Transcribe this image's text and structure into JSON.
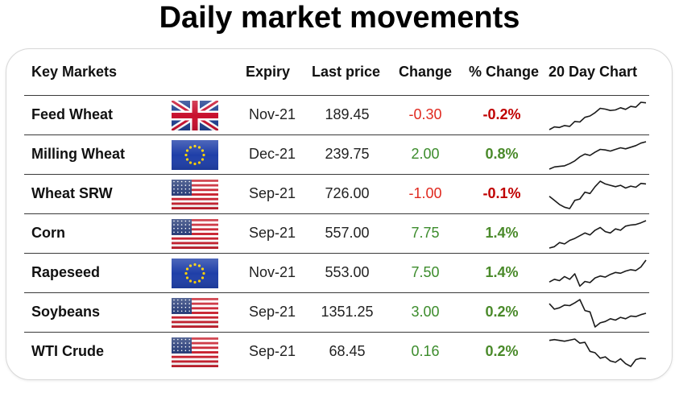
{
  "title": "Daily market movements",
  "headers": {
    "market": "Key Markets",
    "expiry": "Expiry",
    "last_price": "Last price",
    "change": "Change",
    "pct_change": "% Change",
    "chart": "20 Day Chart"
  },
  "colors": {
    "negative": "#e0291f",
    "positive": "#3c8c2c",
    "spark": "#1a1a1a"
  },
  "rows": [
    {
      "name": "Feed Wheat",
      "flag": "uk-flag-icon",
      "expiry": "Nov-21",
      "last_price": "189.45",
      "change": "-0.30",
      "pct_change": "-0.2%",
      "direction": "negative",
      "trend": [
        0.0,
        0.1,
        0.08,
        0.15,
        0.12,
        0.3,
        0.28,
        0.45,
        0.5,
        0.62,
        0.78,
        0.75,
        0.7,
        0.72,
        0.8,
        0.74,
        0.85,
        0.82,
        1.0,
        0.98
      ]
    },
    {
      "name": "Milling Wheat",
      "flag": "eu-flag-icon",
      "expiry": "Dec-21",
      "last_price": "239.75",
      "change": "2.00",
      "pct_change": "0.8%",
      "direction": "positive",
      "trend": [
        0.0,
        0.08,
        0.1,
        0.12,
        0.2,
        0.3,
        0.45,
        0.55,
        0.5,
        0.62,
        0.72,
        0.7,
        0.66,
        0.72,
        0.78,
        0.74,
        0.8,
        0.86,
        0.95,
        1.0
      ]
    },
    {
      "name": "Wheat SRW",
      "flag": "us-flag-icon",
      "expiry": "Sep-21",
      "last_price": "726.00",
      "change": "-1.00",
      "pct_change": "-0.1%",
      "direction": "negative",
      "trend": [
        0.45,
        0.3,
        0.15,
        0.05,
        0.0,
        0.3,
        0.35,
        0.6,
        0.55,
        0.8,
        1.0,
        0.9,
        0.85,
        0.8,
        0.85,
        0.75,
        0.82,
        0.78,
        0.92,
        0.9
      ]
    },
    {
      "name": "Corn",
      "flag": "us-flag-icon",
      "expiry": "Sep-21",
      "last_price": "557.00",
      "change": "7.75",
      "pct_change": "1.4%",
      "direction": "positive",
      "trend": [
        0.0,
        0.05,
        0.2,
        0.15,
        0.28,
        0.35,
        0.45,
        0.55,
        0.48,
        0.65,
        0.75,
        0.6,
        0.55,
        0.7,
        0.65,
        0.8,
        0.84,
        0.86,
        0.92,
        1.0
      ]
    },
    {
      "name": "Rapeseed",
      "flag": "eu-flag-icon",
      "expiry": "Nov-21",
      "last_price": "553.00",
      "change": "7.50",
      "pct_change": "1.4%",
      "direction": "positive",
      "trend": [
        0.2,
        0.3,
        0.25,
        0.4,
        0.3,
        0.5,
        0.05,
        0.22,
        0.18,
        0.35,
        0.42,
        0.38,
        0.48,
        0.55,
        0.52,
        0.6,
        0.65,
        0.62,
        0.75,
        1.0
      ]
    },
    {
      "name": "Soybeans",
      "flag": "us-flag-icon",
      "expiry": "Sep-21",
      "last_price": "1351.25",
      "change": "3.00",
      "pct_change": "0.2%",
      "direction": "positive",
      "trend": [
        0.85,
        0.65,
        0.7,
        0.8,
        0.78,
        0.88,
        1.0,
        0.6,
        0.55,
        0.0,
        0.15,
        0.2,
        0.3,
        0.25,
        0.35,
        0.3,
        0.4,
        0.38,
        0.45,
        0.5
      ]
    },
    {
      "name": "WTI Crude",
      "flag": "us-flag-icon",
      "expiry": "Sep-21",
      "last_price": "68.45",
      "change": "0.16",
      "pct_change": "0.2%",
      "direction": "positive",
      "trend": [
        0.95,
        0.98,
        0.95,
        0.92,
        0.96,
        1.0,
        0.85,
        0.88,
        0.55,
        0.5,
        0.3,
        0.35,
        0.2,
        0.15,
        0.28,
        0.1,
        0.0,
        0.25,
        0.3,
        0.28
      ]
    }
  ]
}
